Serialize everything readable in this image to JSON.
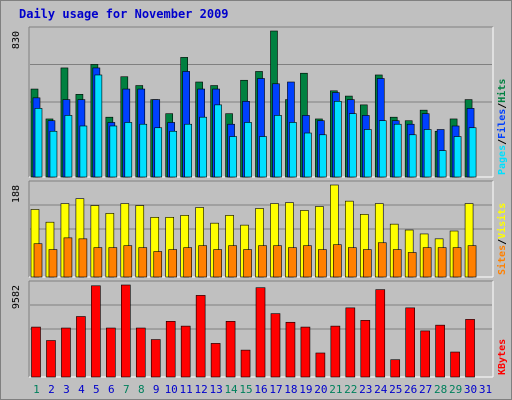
{
  "title": "Daily usage for November 2009",
  "colors": {
    "hits": "#008040",
    "files": "#0040ff",
    "pages": "#00e0ff",
    "visits": "#ffff00",
    "sites": "#ff8000",
    "kbytes": "#ff0000",
    "panel_bg": "#c0c0c0",
    "title": "#0000cc",
    "weekend": "#00805c",
    "weekday": "#0000cc"
  },
  "days": [
    "1",
    "2",
    "3",
    "4",
    "5",
    "6",
    "7",
    "8",
    "9",
    "10",
    "11",
    "12",
    "13",
    "14",
    "15",
    "16",
    "17",
    "18",
    "19",
    "20",
    "21",
    "22",
    "23",
    "24",
    "25",
    "26",
    "27",
    "28",
    "29",
    "30",
    "31"
  ],
  "weekend_days": [
    "1",
    "7",
    "8",
    "14",
    "15",
    "21",
    "22",
    "28",
    "29"
  ],
  "chart_data": [
    {
      "type": "bar",
      "name": "hits-files-pages",
      "ymax_label": "830",
      "ylim": [
        0,
        830
      ],
      "legend": [
        "Pages",
        "Files",
        "Hits"
      ],
      "series": [
        {
          "name": "Hits",
          "values": [
            500,
            330,
            620,
            470,
            640,
            340,
            570,
            520,
            440,
            360,
            680,
            540,
            520,
            360,
            550,
            600,
            830,
            440,
            590,
            330,
            490,
            460,
            410,
            580,
            340,
            320,
            380,
            260,
            330,
            440,
            0
          ]
        },
        {
          "name": "Files",
          "values": [
            450,
            320,
            440,
            440,
            620,
            310,
            500,
            500,
            440,
            310,
            600,
            500,
            500,
            300,
            430,
            560,
            530,
            540,
            350,
            320,
            480,
            440,
            350,
            560,
            320,
            300,
            360,
            270,
            290,
            390,
            0
          ]
        },
        {
          "name": "Pages",
          "values": [
            390,
            260,
            350,
            290,
            580,
            290,
            310,
            300,
            280,
            260,
            300,
            340,
            410,
            230,
            310,
            230,
            350,
            310,
            250,
            240,
            430,
            360,
            270,
            320,
            300,
            240,
            270,
            150,
            230,
            280,
            0
          ]
        }
      ]
    },
    {
      "type": "bar",
      "name": "visits-sites",
      "ymax_label": "188",
      "ylim": [
        0,
        188
      ],
      "legend": [
        "Sites",
        "Visits"
      ],
      "series": [
        {
          "name": "Visits",
          "values": [
            138,
            112,
            150,
            160,
            146,
            130,
            150,
            146,
            122,
            122,
            126,
            142,
            110,
            126,
            106,
            140,
            150,
            152,
            136,
            144,
            188,
            155,
            128,
            150,
            108,
            96,
            88,
            78,
            94,
            150,
            0
          ]
        },
        {
          "name": "Sites",
          "values": [
            68,
            56,
            80,
            78,
            60,
            60,
            64,
            60,
            52,
            56,
            60,
            64,
            56,
            64,
            56,
            64,
            64,
            60,
            64,
            56,
            66,
            60,
            56,
            70,
            56,
            50,
            60,
            60,
            60,
            64,
            0
          ]
        }
      ]
    },
    {
      "type": "bar",
      "name": "kbytes",
      "ymax_label": "9582",
      "ylim": [
        0,
        9582
      ],
      "legend": [
        "KBytes"
      ],
      "series": [
        {
          "name": "KBytes",
          "values": [
            5200,
            3800,
            5100,
            6300,
            9500,
            5100,
            9582,
            5100,
            3900,
            5800,
            5300,
            8500,
            3500,
            5800,
            2800,
            9300,
            6600,
            5700,
            5200,
            2500,
            5300,
            7200,
            5900,
            9100,
            1800,
            7200,
            4800,
            5400,
            2600,
            6000,
            0
          ]
        }
      ]
    }
  ]
}
